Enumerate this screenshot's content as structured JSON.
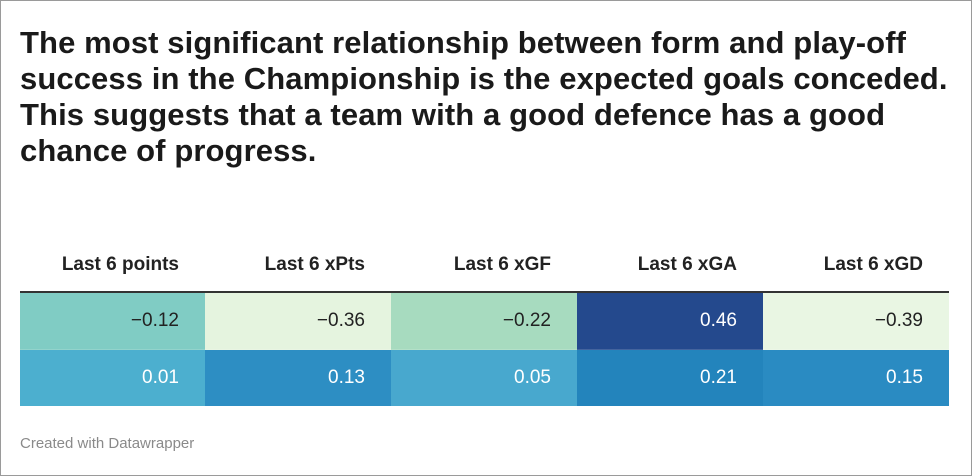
{
  "title": "The most significant relationship between form and play-off success in the Championship is the expected goals conceded. This suggests that a team with a good defence has a good chance of progress.",
  "table": {
    "headers": [
      "Last 6 points",
      "Last 6 xPts",
      "Last 6 xGF",
      "Last 6 xGA",
      "Last 6 xGD"
    ],
    "rows": [
      {
        "cells": [
          {
            "text": "−0.12",
            "bg": "#80ccc4",
            "color": "#222222"
          },
          {
            "text": "−0.36",
            "bg": "#e5f4df",
            "color": "#222222"
          },
          {
            "text": "−0.22",
            "bg": "#a7dbbf",
            "color": "#222222"
          },
          {
            "text": "0.46",
            "bg": "#24498d",
            "color": "#ffffff"
          },
          {
            "text": "−0.39",
            "bg": "#e9f6e3",
            "color": "#222222"
          }
        ]
      },
      {
        "cells": [
          {
            "text": "0.01",
            "bg": "#4cafcf",
            "color": "#ffffff"
          },
          {
            "text": "0.13",
            "bg": "#2d8ec3",
            "color": "#ffffff"
          },
          {
            "text": "0.05",
            "bg": "#48a8ce",
            "color": "#ffffff"
          },
          {
            "text": "0.21",
            "bg": "#2384bc",
            "color": "#ffffff"
          },
          {
            "text": "0.15",
            "bg": "#2a8bc2",
            "color": "#ffffff"
          }
        ]
      }
    ]
  },
  "footer": "Created with Datawrapper"
}
